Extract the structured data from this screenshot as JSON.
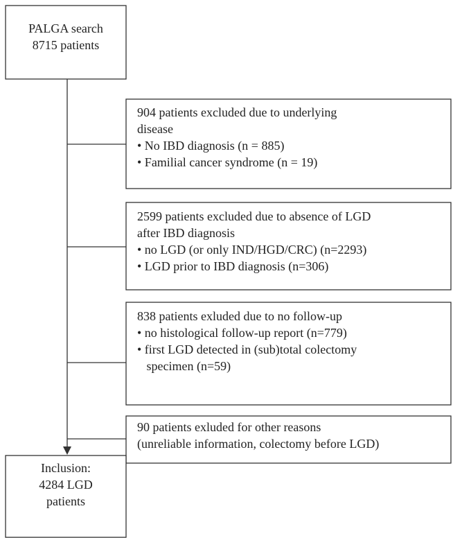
{
  "nodes": [
    {
      "lines": [
        "PALGA search",
        "8715 patients"
      ]
    },
    {
      "lines": [
        "904 patients excluded due to underlying",
        "disease",
        "• No IBD diagnosis (n = 885)",
        "• Familial cancer syndrome (n = 19)"
      ]
    },
    {
      "lines": [
        "2599 patients excluded due to absence of LGD",
        "after IBD diagnosis",
        "• no LGD (or only IND/HGD/CRC) (n=2293)",
        "• LGD prior to IBD diagnosis (n=306)"
      ]
    },
    {
      "lines": [
        "838 patients exluded due to no follow-up",
        "• no histological follow-up report (n=779)",
        "• first LGD detected in (sub)total colectomy",
        "   specimen (n=59)"
      ]
    },
    {
      "lines": [
        "90 patients exluded for other reasons",
        "(unreliable information, colectomy before LGD)"
      ]
    },
    {
      "lines": [
        "Inclusion:",
        "4284 LGD",
        "patients"
      ]
    }
  ]
}
